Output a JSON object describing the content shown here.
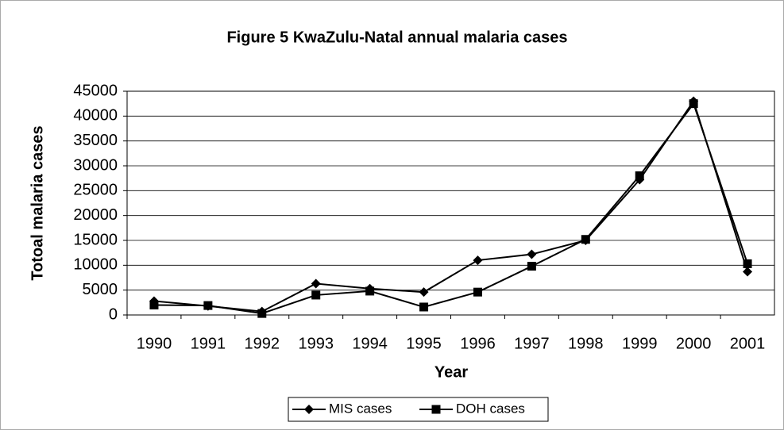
{
  "chart_data": {
    "type": "line",
    "title": "Figure 5 KwaZulu-Natal annual malaria cases",
    "x_label": "Year",
    "y_label": "Totoal malaria cases",
    "categories": [
      "1990",
      "1991",
      "1992",
      "1993",
      "1994",
      "1995",
      "1996",
      "1997",
      "1998",
      "1999",
      "2000",
      "2001"
    ],
    "series": [
      {
        "name": "MIS cases",
        "color": "#000000",
        "marker": "diamond",
        "values": [
          2800,
          1800,
          700,
          6300,
          5300,
          4600,
          11000,
          12200,
          15000,
          27200,
          43000,
          8700
        ]
      },
      {
        "name": "DOH cases",
        "color": "#000000",
        "marker": "square",
        "values": [
          2000,
          1900,
          300,
          4000,
          4800,
          1600,
          4600,
          9800,
          15200,
          28000,
          42500,
          10300
        ]
      }
    ],
    "ylim": [
      0,
      45000
    ],
    "yticks": [
      0,
      5000,
      10000,
      15000,
      20000,
      25000,
      30000,
      35000,
      40000,
      45000
    ],
    "grid": true,
    "legend": "bottom"
  }
}
